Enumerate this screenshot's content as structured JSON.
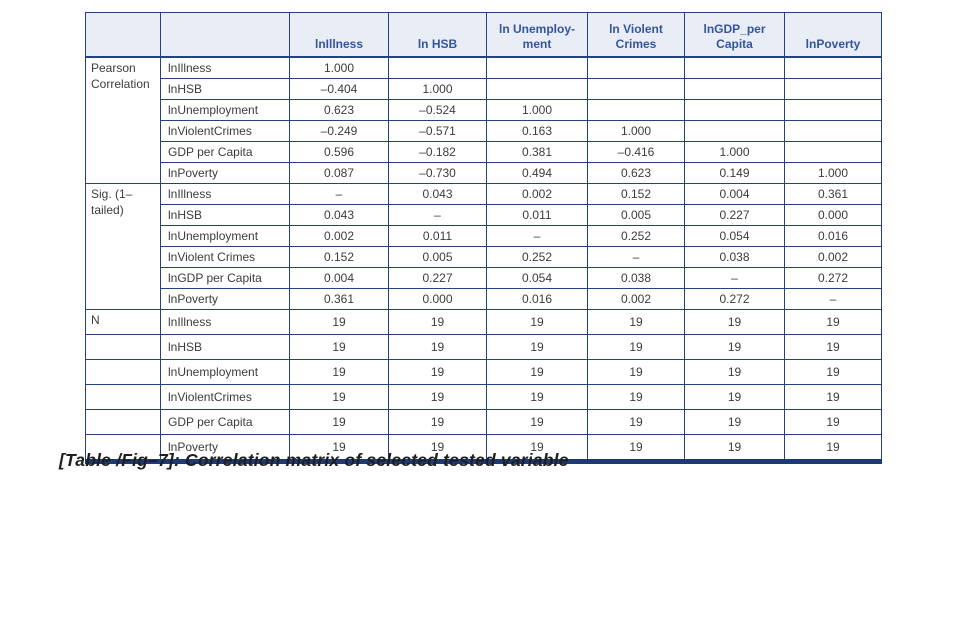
{
  "caption": "[Table /Fig–7]: Correlation matrix of selected tested variable",
  "colors": {
    "border_navy": "#24427f",
    "thick_rule_navy": "#1e3a75",
    "header_bg": "#e9edf6",
    "header_text": "#34559e",
    "body_text": "#3c3c3c"
  },
  "table": {
    "columns": [
      "",
      "",
      "lnIllness",
      "ln HSB",
      "ln Unemploy-ment",
      "ln Violent Crimes",
      "lnGDP_per Capita",
      "lnPoverty"
    ],
    "sections": [
      {
        "label": "Pearson Correlation",
        "label_spans_all_rows": true,
        "rows": [
          {
            "label": "lnIllness",
            "values": [
              "1.000",
              "",
              "",
              "",
              "",
              ""
            ]
          },
          {
            "label": "lnHSB",
            "values": [
              "–0.404",
              "1.000",
              "",
              "",
              "",
              ""
            ]
          },
          {
            "label": "lnUnemployment",
            "values": [
              "0.623",
              "–0.524",
              "1.000",
              "",
              "",
              ""
            ]
          },
          {
            "label": "lnViolentCrimes",
            "values": [
              "–0.249",
              "–0.571",
              "0.163",
              "1.000",
              "",
              ""
            ]
          },
          {
            "label": "GDP per Capita",
            "values": [
              "0.596",
              "–0.182",
              "0.381",
              "–0.416",
              "1.000",
              ""
            ]
          },
          {
            "label": "lnPoverty",
            "values": [
              "0.087",
              "–0.730",
              "0.494",
              "0.623",
              "0.149",
              "1.000"
            ]
          }
        ]
      },
      {
        "label": "Sig. (1–tailed)",
        "label_spans_all_rows": true,
        "rows": [
          {
            "label": "lnIllness",
            "values": [
              "–",
              "0.043",
              "0.002",
              "0.152",
              "0.004",
              "0.361"
            ]
          },
          {
            "label": "lnHSB",
            "values": [
              "0.043",
              "–",
              "0.011",
              "0.005",
              "0.227",
              "0.000"
            ]
          },
          {
            "label": "lnUnemployment",
            "values": [
              "0.002",
              "0.011",
              "–",
              "0.252",
              "0.054",
              "0.016"
            ]
          },
          {
            "label": "lnViolent Crimes",
            "values": [
              "0.152",
              "0.005",
              "0.252",
              "–",
              "0.038",
              "0.002"
            ]
          },
          {
            "label": "lnGDP per Capita",
            "values": [
              "0.004",
              "0.227",
              "0.054",
              "0.038",
              "–",
              "0.272"
            ]
          },
          {
            "label": "lnPoverty",
            "values": [
              "0.361",
              "0.000",
              "0.016",
              "0.002",
              "0.272",
              "–"
            ]
          }
        ]
      },
      {
        "label": "N",
        "label_spans_all_rows": false,
        "rows": [
          {
            "label": "lnIllness",
            "values": [
              "19",
              "19",
              "19",
              "19",
              "19",
              "19"
            ]
          },
          {
            "label": "lnHSB",
            "values": [
              "19",
              "19",
              "19",
              "19",
              "19",
              "19"
            ]
          },
          {
            "label": "lnUnemployment",
            "values": [
              "19",
              "19",
              "19",
              "19",
              "19",
              "19"
            ]
          },
          {
            "label": "lnViolentCrimes",
            "values": [
              "19",
              "19",
              "19",
              "19",
              "19",
              "19"
            ]
          },
          {
            "label": "GDP per Capita",
            "values": [
              "19",
              "19",
              "19",
              "19",
              "19",
              "19"
            ]
          },
          {
            "label": "lnPoverty",
            "values": [
              "19",
              "19",
              "19",
              "19",
              "19",
              "19"
            ]
          }
        ]
      }
    ]
  }
}
